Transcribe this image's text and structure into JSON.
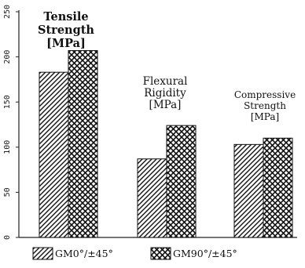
{
  "chart_data": {
    "type": "bar",
    "categories": [
      {
        "lines": [
          "Tensile",
          "Strength",
          "[MPa]"
        ]
      },
      {
        "lines": [
          "Flexural",
          "Rigidity",
          "[MPa]"
        ]
      },
      {
        "lines": [
          "Compressive",
          "Strength",
          "[MPa]"
        ]
      }
    ],
    "series": [
      {
        "name": "GM0°/±45°",
        "values": [
          183,
          87,
          103
        ],
        "pattern": "diagonal-hatch"
      },
      {
        "name": "GM90°/±45°",
        "values": [
          207,
          124,
          110
        ],
        "pattern": "crosshatch"
      }
    ],
    "ylim": [
      0,
      250
    ],
    "yticks": [
      "0",
      "50",
      "100",
      "150",
      "200",
      "250"
    ],
    "xlabel": "",
    "ylabel": "",
    "grid": false,
    "legend_position": "bottom"
  }
}
